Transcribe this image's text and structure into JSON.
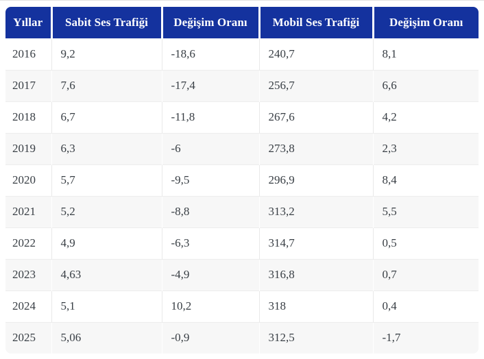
{
  "chart_data": {
    "type": "table",
    "columns": [
      "Yıllar",
      "Sabit Ses Trafiği",
      "Değişim Oranı",
      "Mobil Ses Trafiği",
      "Değişim Oranı"
    ],
    "rows": [
      [
        "2016",
        "9,2",
        "-18,6",
        "240,7",
        "8,1"
      ],
      [
        "2017",
        "7,6",
        "-17,4",
        "256,7",
        "6,6"
      ],
      [
        "2018",
        "6,7",
        "-11,8",
        "267,6",
        "4,2"
      ],
      [
        "2019",
        "6,3",
        "-6",
        "273,8",
        "2,3"
      ],
      [
        "2020",
        "5,7",
        "-9,5",
        "296,9",
        "8,4"
      ],
      [
        "2021",
        "5,2",
        "-8,8",
        "313,2",
        "5,5"
      ],
      [
        "2022",
        "4,9",
        "-6,3",
        "314,7",
        "0,5"
      ],
      [
        "2023",
        "4,63",
        "-4,9",
        "316,8",
        "0,7"
      ],
      [
        "2024",
        "5,1",
        "10,2",
        "318",
        "0,4"
      ],
      [
        "2025",
        "5,06",
        "-0,9",
        "312,5",
        "-1,7"
      ]
    ],
    "layout": {
      "striped_rows": true,
      "header_position": "top",
      "first_striped_row_index": 1
    },
    "colors": {
      "header_bg": "#14329e",
      "header_text": "#ffffff",
      "stripe": "#f7f7f7",
      "row": "#ffffff",
      "vertical_line": "#e9e9e9",
      "horizontal_line": "#ededed",
      "text": "#383e44",
      "top_rule": "#e2e2e2"
    }
  }
}
